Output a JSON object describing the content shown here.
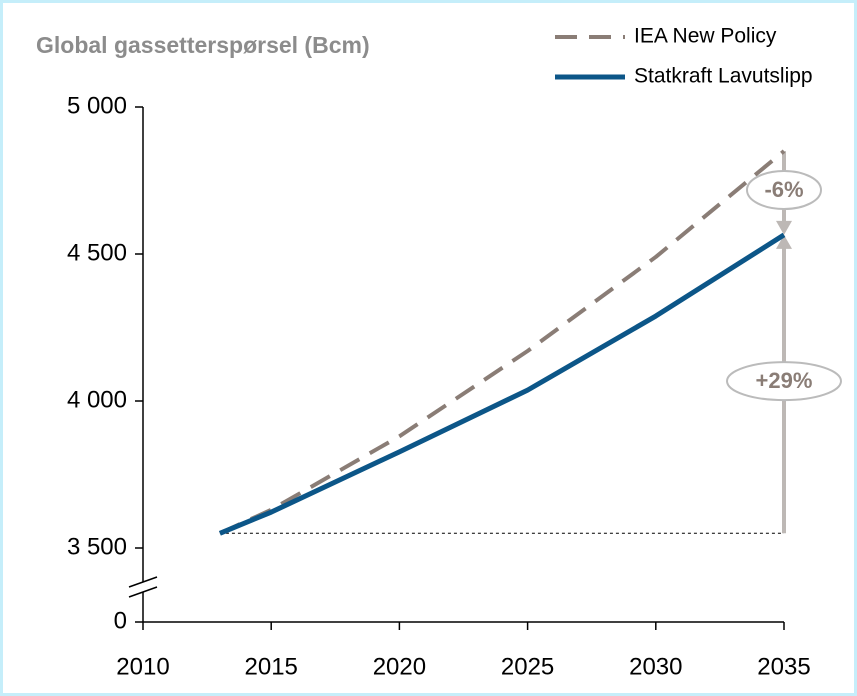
{
  "chart_data": {
    "type": "line",
    "title": "Global gassetterspørsel (Bcm)",
    "x": [
      2013,
      2015,
      2020,
      2025,
      2030,
      2035
    ],
    "series": [
      {
        "name": "IEA New Policy",
        "color": "#8a7d76",
        "dashed": true,
        "values": [
          3550,
          3630,
          3880,
          4170,
          4490,
          4850
        ]
      },
      {
        "name": "Statkraft Lavutslipp",
        "color": "#0c5688",
        "dashed": false,
        "values": [
          3550,
          3622,
          3827,
          4037,
          4289,
          4565
        ]
      }
    ],
    "xlim": [
      2010,
      2035
    ],
    "xticks": [
      2010,
      2015,
      2020,
      2025,
      2030,
      2035
    ],
    "ylim": [
      0,
      5000
    ],
    "yticks": [
      0,
      {
        "value": 3500,
        "label": "3 500"
      },
      {
        "value": 4000,
        "label": "4 000"
      },
      {
        "value": 4500,
        "label": "4 500"
      },
      {
        "value": 5000,
        "label": "5 000"
      }
    ],
    "axis_break": [
      0,
      3500
    ],
    "annotations": [
      "-6%",
      "+29%"
    ]
  }
}
